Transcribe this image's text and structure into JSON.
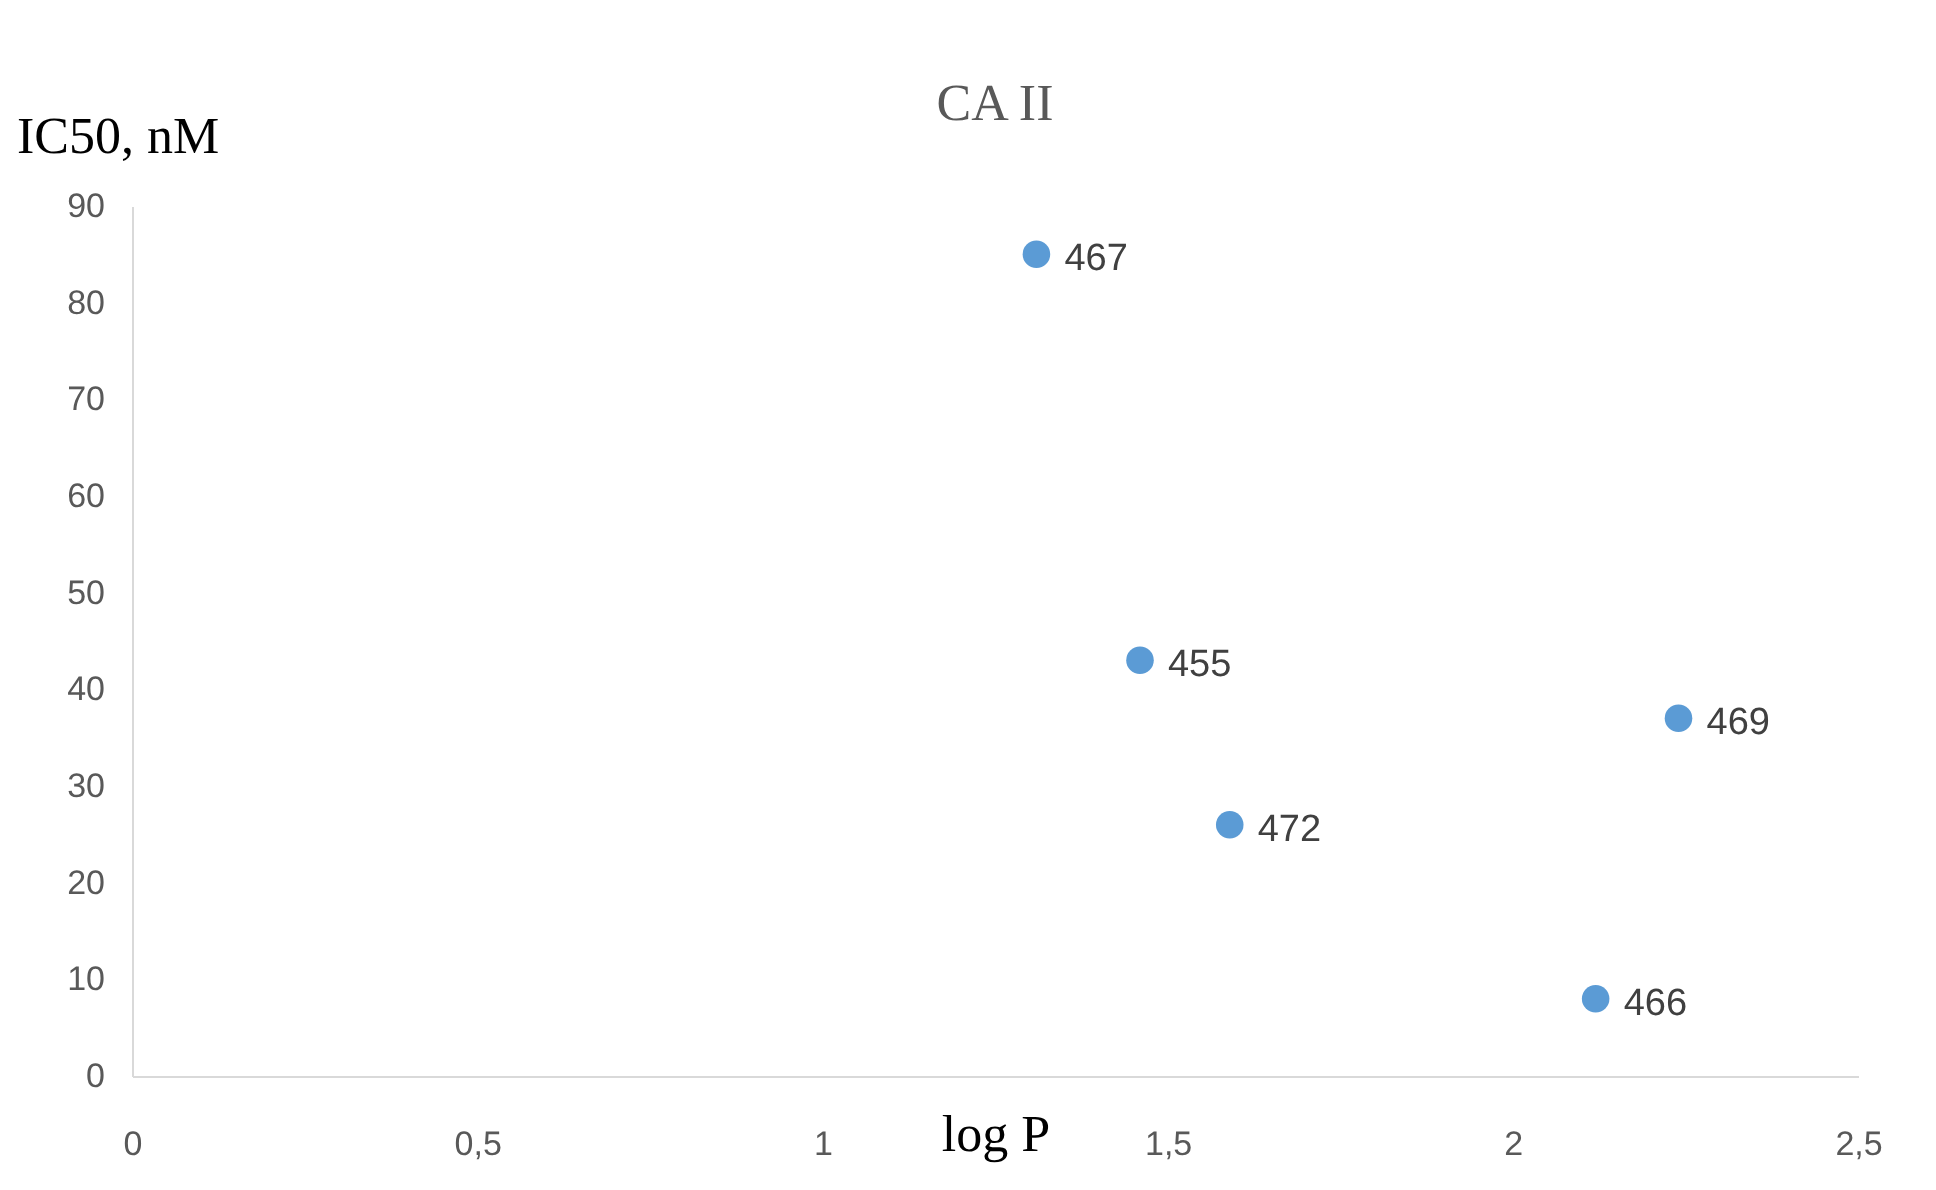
{
  "chart_data": {
    "type": "scatter",
    "title": "CA II",
    "xlabel": "log P",
    "ylabel": "IC50, nM",
    "x": [
      1.31,
      1.46,
      1.59,
      2.24,
      2.12
    ],
    "series": [
      {
        "color": "#5b9bd5",
        "values": [
          85,
          43,
          26,
          37,
          8
        ]
      }
    ],
    "annotations": [
      {
        "text": "467",
        "x": 1.31,
        "y": 85
      },
      {
        "text": "455",
        "x": 1.46,
        "y": 43
      },
      {
        "text": "472",
        "x": 1.59,
        "y": 26
      },
      {
        "text": "469",
        "x": 2.24,
        "y": 37
      },
      {
        "text": "466",
        "x": 2.12,
        "y": 8
      }
    ],
    "xlim": [
      0,
      2.5
    ],
    "ylim": [
      0,
      90
    ],
    "xticks": [
      0,
      {
        "value": 0.5,
        "label": "0,5"
      },
      1,
      {
        "value": 1.5,
        "label": "1,5"
      },
      2,
      {
        "value": 2.5,
        "label": "2,5"
      }
    ],
    "yticks": [
      0,
      10,
      20,
      30,
      40,
      50,
      60,
      70,
      80,
      90
    ],
    "grid": false,
    "marker": "circle"
  }
}
